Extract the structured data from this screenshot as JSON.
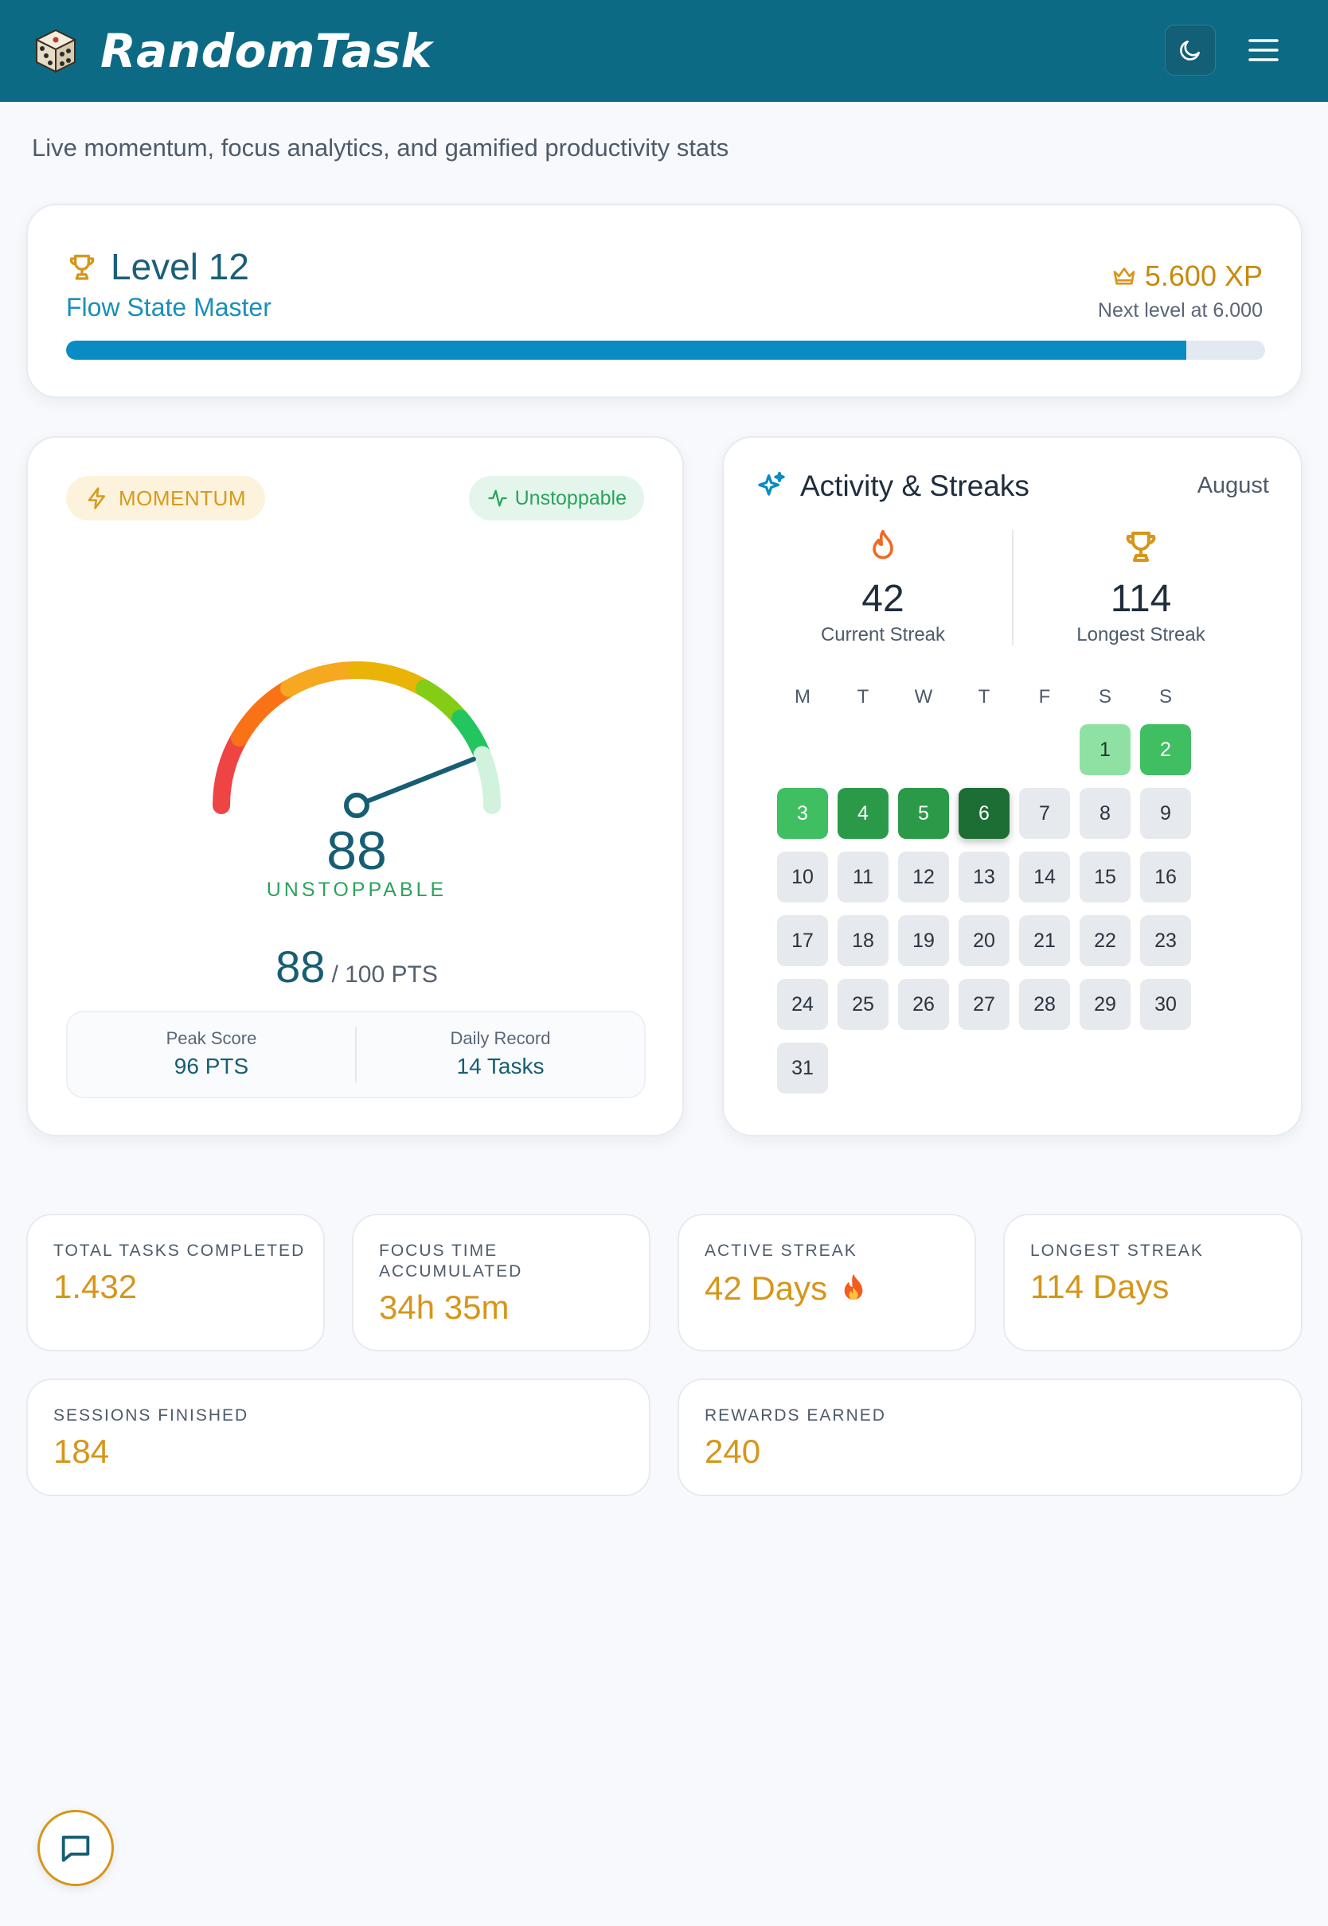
{
  "app": {
    "name": "RandomTask"
  },
  "header": {
    "theme_icon": "moon-icon",
    "menu_icon": "menu-icon"
  },
  "subtitle": "Live momentum, focus analytics, and gamified productivity stats",
  "level": {
    "title": "Level 12",
    "subtitle": "Flow State Master",
    "xp": "5.600 XP",
    "next": "Next level at 6.000",
    "progress": 0.934
  },
  "momentum": {
    "pill": "MOMENTUM",
    "status": "Unstoppable",
    "score": "88",
    "score_label": "UNSTOPPABLE",
    "pts_value": "88",
    "pts_suffix": "/ 100 PTS",
    "gauge_level": 88,
    "peak_label": "Peak Score",
    "peak_value": "96 PTS",
    "record_label": "Daily Record",
    "record_value": "14 Tasks"
  },
  "activity": {
    "title": "Activity & Streaks",
    "month": "August",
    "current_streak": "42",
    "current_label": "Current Streak",
    "longest_streak": "114",
    "longest_label": "Longest Streak",
    "weekdays": [
      "M",
      "T",
      "W",
      "T",
      "F",
      "S",
      "S"
    ],
    "first_weekday_index": 5,
    "days": [
      {
        "d": "1",
        "lv": 1
      },
      {
        "d": "2",
        "lv": 2
      },
      {
        "d": "3",
        "lv": 2
      },
      {
        "d": "4",
        "lv": 3
      },
      {
        "d": "5",
        "lv": 3
      },
      {
        "d": "6",
        "lv": 4
      },
      {
        "d": "7",
        "lv": 0
      },
      {
        "d": "8",
        "lv": 0
      },
      {
        "d": "9",
        "lv": 0
      },
      {
        "d": "10",
        "lv": 0
      },
      {
        "d": "11",
        "lv": 0
      },
      {
        "d": "12",
        "lv": 0
      },
      {
        "d": "13",
        "lv": 0
      },
      {
        "d": "14",
        "lv": 0
      },
      {
        "d": "15",
        "lv": 0
      },
      {
        "d": "16",
        "lv": 0
      },
      {
        "d": "17",
        "lv": 0
      },
      {
        "d": "18",
        "lv": 0
      },
      {
        "d": "19",
        "lv": 0
      },
      {
        "d": "20",
        "lv": 0
      },
      {
        "d": "21",
        "lv": 0
      },
      {
        "d": "22",
        "lv": 0
      },
      {
        "d": "23",
        "lv": 0
      },
      {
        "d": "24",
        "lv": 0
      },
      {
        "d": "25",
        "lv": 0
      },
      {
        "d": "26",
        "lv": 0
      },
      {
        "d": "27",
        "lv": 0
      },
      {
        "d": "28",
        "lv": 0
      },
      {
        "d": "29",
        "lv": 0
      },
      {
        "d": "30",
        "lv": 0
      },
      {
        "d": "31",
        "lv": 0
      }
    ]
  },
  "stats": {
    "total_label": "TOTAL TASKS COMPLETED",
    "total_value": "1.432",
    "focus_label_1": "FOCUS TIME",
    "focus_label_2": "ACCUMULATED",
    "focus_value": "34h 35m",
    "active_label": "ACTIVE STREAK",
    "active_value": "42 Days",
    "longest_label": "LONGEST STREAK",
    "longest_value": "114 Days",
    "sessions_label": "SESSIONS FINISHED",
    "sessions_value": "184",
    "rewards_label": "REWARDS EARNED",
    "rewards_value": "240"
  },
  "colors": {
    "header": "#0d6a84",
    "accent": "#d6961a",
    "primary": "#175e74",
    "success": "#2ca35c",
    "progress": "#0a8bc4"
  },
  "chat": {
    "icon": "chat-icon"
  }
}
